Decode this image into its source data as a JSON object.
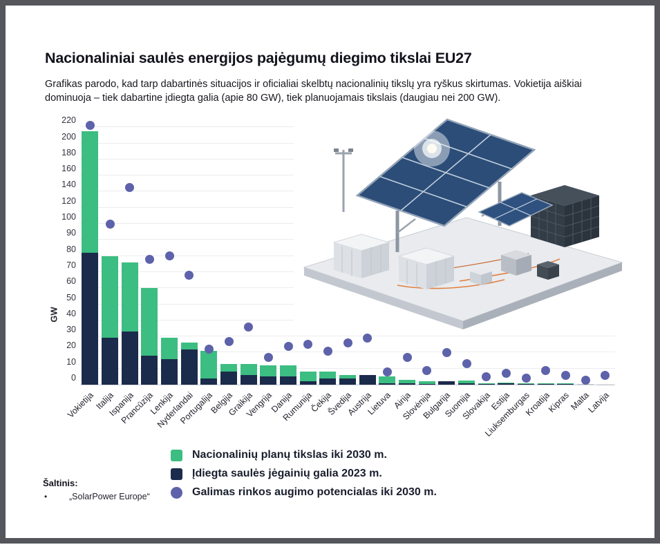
{
  "header": {
    "title": "Nacionaliniai saulės energijos pajėgumų diegimo tikslai EU27",
    "subtitle": "Grafikas parodo, kad tarp dabartinės situacijos ir oficialiai skelbtų nacionalinių tikslų yra ryškus skirtumas. Vokietija aiškiai dominuoja – tiek dabartine įdiegta galia (apie 80 GW), tiek planuojamais tikslais (daugiau nei 200 GW)."
  },
  "chart_data": {
    "type": "bar",
    "subtype": "stacked bars with scatter overlay",
    "title": "Nacionaliniai saulės energijos pajėgumų diegimo tikslai EU27",
    "ylabel": "GW",
    "yticks": [
      0,
      10,
      20,
      30,
      40,
      50,
      60,
      70,
      80,
      90,
      100,
      120,
      140,
      160,
      180,
      200,
      220
    ],
    "y_scale_note": "non-linear axis: equal spacing per 10 GW up to 100, per 20 GW above 100",
    "grid": true,
    "colors": {
      "target": "#3cbd81",
      "installed": "#1b2b4b",
      "potential": "#5d62aa"
    },
    "series_names": {
      "target": "Nacionalinių planų tikslas iki 2030 m.",
      "installed": "Įdiegta saulės jėgainių galia 2023 m.",
      "potential": "Galimas rinkos augimo potencialas iki 2030 m."
    },
    "countries": [
      {
        "name": "Vokietija",
        "installed_2023": 82,
        "target_2030": 215,
        "potential_2030": 222
      },
      {
        "name": "Italija",
        "installed_2023": 29,
        "target_2030": 80,
        "potential_2030": 100
      },
      {
        "name": "Ispanija",
        "installed_2023": 33,
        "target_2030": 76,
        "potential_2030": 145
      },
      {
        "name": "Prancūzija",
        "installed_2023": 18,
        "target_2030": 60,
        "potential_2030": 78
      },
      {
        "name": "Lenkija",
        "installed_2023": 16,
        "target_2030": 29,
        "potential_2030": 80
      },
      {
        "name": "Nyderlandai",
        "installed_2023": 22,
        "target_2030": 26,
        "potential_2030": 68
      },
      {
        "name": "Portugalija",
        "installed_2023": 4,
        "target_2030": 21,
        "potential_2030": 22
      },
      {
        "name": "Belgija",
        "installed_2023": 8,
        "target_2030": 13,
        "potential_2030": 27
      },
      {
        "name": "Graikija",
        "installed_2023": 6,
        "target_2030": 13,
        "potential_2030": 36
      },
      {
        "name": "Vengrija",
        "installed_2023": 5,
        "target_2030": 12,
        "potential_2030": 17
      },
      {
        "name": "Danija",
        "installed_2023": 5,
        "target_2030": 12,
        "potential_2030": 24
      },
      {
        "name": "Rumunija",
        "installed_2023": 2,
        "target_2030": 8,
        "potential_2030": 25
      },
      {
        "name": "Čekija",
        "installed_2023": 4,
        "target_2030": 8,
        "potential_2030": 21
      },
      {
        "name": "Švedija",
        "installed_2023": 4,
        "target_2030": 6,
        "potential_2030": 26
      },
      {
        "name": "Austrija",
        "installed_2023": 6,
        "target_2030": 6,
        "potential_2030": 29
      },
      {
        "name": "Lietuva",
        "installed_2023": 1,
        "target_2030": 5,
        "potential_2030": 8
      },
      {
        "name": "Airija",
        "installed_2023": 1,
        "target_2030": 3,
        "potential_2030": 17
      },
      {
        "name": "Slovėnija",
        "installed_2023": 0.5,
        "target_2030": 2,
        "potential_2030": 9
      },
      {
        "name": "Bulgarija",
        "installed_2023": 2,
        "target_2030": 2,
        "potential_2030": 20
      },
      {
        "name": "Suomija",
        "installed_2023": 1,
        "target_2030": 2.5,
        "potential_2030": 13
      },
      {
        "name": "Slovakija",
        "installed_2023": 0.5,
        "target_2030": 1,
        "potential_2030": 5
      },
      {
        "name": "Estija",
        "installed_2023": 1,
        "target_2030": 1.5,
        "potential_2030": 7
      },
      {
        "name": "Liuksemburgas",
        "installed_2023": 0.5,
        "target_2030": 1,
        "potential_2030": 4
      },
      {
        "name": "Kroatija",
        "installed_2023": 0.5,
        "target_2030": 1,
        "potential_2030": 9
      },
      {
        "name": "Kipras",
        "installed_2023": 0.5,
        "target_2030": 1,
        "potential_2030": 6
      },
      {
        "name": "Malta",
        "installed_2023": 0.3,
        "target_2030": 0.6,
        "potential_2030": 3,
        "colors": {
          "installed": "#8f959d",
          "target": "#b9bec6"
        }
      },
      {
        "name": "Latvija",
        "installed_2023": 0.2,
        "target_2030": 0.4,
        "potential_2030": 6,
        "colors": {
          "installed": "#c6cad0",
          "target": "#e0e3e7"
        }
      }
    ]
  },
  "legend": {
    "items": [
      {
        "label": "Nacionalinių planų tikslas iki 2030 m.",
        "shape": "square",
        "color": "#3cbd81"
      },
      {
        "label": "Įdiegta saulės jėgainių galia 2023 m.",
        "shape": "square",
        "color": "#1b2b4b"
      },
      {
        "label": "Galimas rinkos augimo potencialas iki 2030 m.",
        "shape": "circle",
        "color": "#5d62aa"
      }
    ]
  },
  "source": {
    "heading": "Šaltinis:",
    "bullet": "•",
    "items": [
      "„SolarPower Europe“"
    ]
  },
  "colors": {
    "frame": "#54565c",
    "background": "#ffffff",
    "gridline": "#ececf0",
    "text": "#15151d"
  }
}
